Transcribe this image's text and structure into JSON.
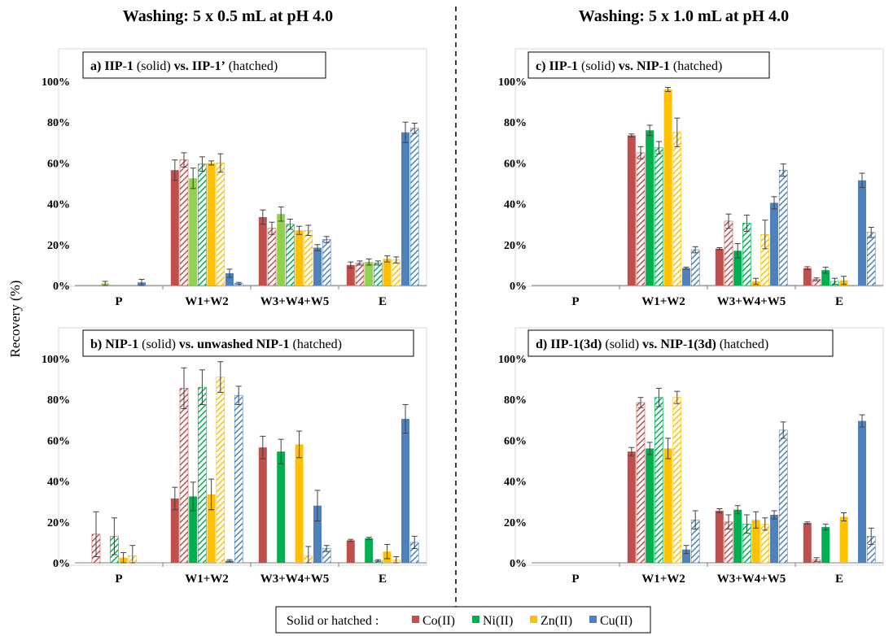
{
  "header": {
    "left_title": "Washing: 5 x 0.5 mL at pH 4.0",
    "right_title": "Washing: 5 x 1.0 mL at pH 4.0"
  },
  "y_axis_label": "Recovery (%)",
  "legend": {
    "prefix": "Solid or hatched :",
    "items": [
      {
        "label": "Co(II)",
        "color": "#c0504d"
      },
      {
        "label": "Ni(II)",
        "color": "#00b050"
      },
      {
        "label": "Zn(II)",
        "color": "#ffc000"
      },
      {
        "label": "Cu(II)",
        "color": "#4f81bd"
      }
    ]
  },
  "colors": {
    "Co": "#c0504d",
    "Ni": "#00b050",
    "Ni_light": "#92d050",
    "Zn": "#ffc000",
    "Cu": "#4f81bd"
  },
  "chart_data": [
    {
      "panel": "a",
      "type": "bar",
      "title": [
        {
          "t": "a) ",
          "b": true
        },
        {
          "t": "IIP",
          "b": true
        },
        {
          "t": "-",
          "b": false
        },
        {
          "t": "1",
          "b": true
        },
        {
          "t": " (solid) ",
          "b": false
        },
        {
          "t": "vs. IIP-1’",
          "b": true
        },
        {
          "t": " (hatched)",
          "b": false
        }
      ],
      "categories": [
        "P",
        "W1+W2",
        "W3+W4+W5",
        "E"
      ],
      "yticks": [
        "0%",
        "20%",
        "40%",
        "60%",
        "80%",
        "100%"
      ],
      "ylim": [
        0,
        110
      ],
      "grid": false,
      "bars": [
        {
          "ion": "Co",
          "hatched": false,
          "values": [
            0,
            56.5,
            33.5,
            10
          ],
          "err": [
            0,
            5,
            3.5,
            1.5
          ]
        },
        {
          "ion": "Co",
          "hatched": true,
          "values": [
            0,
            61.5,
            28,
            11
          ],
          "err": [
            0,
            3.5,
            3,
            1
          ]
        },
        {
          "ion": "Ni",
          "hatched": false,
          "light": true,
          "values": [
            1,
            52.5,
            35,
            11.5
          ],
          "err": [
            1,
            5,
            3.5,
            1.5
          ]
        },
        {
          "ion": "Ni",
          "hatched": true,
          "values": [
            0,
            59.5,
            30,
            11
          ],
          "err": [
            0,
            3.5,
            2.5,
            1
          ]
        },
        {
          "ion": "Zn",
          "hatched": false,
          "values": [
            0,
            60,
            27,
            13
          ],
          "err": [
            0,
            1,
            2,
            1.5
          ]
        },
        {
          "ion": "Zn",
          "hatched": true,
          "values": [
            0,
            60,
            27,
            12.5
          ],
          "err": [
            0,
            4.5,
            2.5,
            1.5
          ]
        },
        {
          "ion": "Cu",
          "hatched": false,
          "values": [
            1.5,
            6,
            18.5,
            75
          ],
          "err": [
            1.5,
            2,
            1.5,
            5
          ]
        },
        {
          "ion": "Cu",
          "hatched": true,
          "values": [
            0,
            1,
            22.5,
            77
          ],
          "err": [
            0,
            0.5,
            1.5,
            2.5
          ]
        }
      ]
    },
    {
      "panel": "b",
      "type": "bar",
      "title": [
        {
          "t": "b) ",
          "b": true
        },
        {
          "t": "NIP",
          "b": true
        },
        {
          "t": "-",
          "b": false
        },
        {
          "t": "1",
          "b": true
        },
        {
          "t": " (solid) ",
          "b": false
        },
        {
          "t": "vs. unwashed NIP",
          "b": true
        },
        {
          "t": "-",
          "b": false
        },
        {
          "t": "1",
          "b": true
        },
        {
          "t": " (hatched)",
          "b": false
        }
      ],
      "categories": [
        "P",
        "W1+W2",
        "W3+W4+W5",
        "E"
      ],
      "yticks": [
        "0%",
        "20%",
        "40%",
        "60%",
        "80%",
        "100%"
      ],
      "ylim": [
        0,
        110
      ],
      "grid": false,
      "bars": [
        {
          "ion": "Co",
          "hatched": false,
          "values": [
            0,
            31.5,
            56.5,
            11
          ],
          "err": [
            0,
            5.5,
            5.5,
            0.5
          ]
        },
        {
          "ion": "Co",
          "hatched": true,
          "values": [
            14,
            85.5,
            0,
            0
          ],
          "err": [
            11,
            10,
            0,
            0
          ]
        },
        {
          "ion": "Ni",
          "hatched": false,
          "values": [
            0,
            32.5,
            54.5,
            12
          ],
          "err": [
            0,
            7,
            6,
            0.5
          ]
        },
        {
          "ion": "Ni",
          "hatched": true,
          "values": [
            13,
            86,
            0,
            1
          ],
          "err": [
            9,
            8.5,
            0,
            0.5
          ]
        },
        {
          "ion": "Zn",
          "hatched": false,
          "values": [
            2.5,
            33.5,
            58,
            5.5
          ],
          "err": [
            2.5,
            7.5,
            6.5,
            3.5
          ]
        },
        {
          "ion": "Zn",
          "hatched": true,
          "values": [
            3.5,
            91,
            3.5,
            1.5
          ],
          "err": [
            5,
            7.5,
            4.5,
            1.5
          ]
        },
        {
          "ion": "Cu",
          "hatched": false,
          "values": [
            0,
            1,
            28,
            70.5
          ],
          "err": [
            0,
            0.5,
            7.5,
            7
          ]
        },
        {
          "ion": "Cu",
          "hatched": true,
          "values": [
            0,
            82,
            7,
            10
          ],
          "err": [
            0,
            4.5,
            1.5,
            3
          ]
        }
      ]
    },
    {
      "panel": "c",
      "type": "bar",
      "title": [
        {
          "t": "c) ",
          "b": true
        },
        {
          "t": "IIP",
          "b": true
        },
        {
          "t": "-",
          "b": false
        },
        {
          "t": "1",
          "b": true
        },
        {
          "t": " (solid) ",
          "b": false
        },
        {
          "t": "vs. NIP",
          "b": true
        },
        {
          "t": "-",
          "b": false
        },
        {
          "t": "1",
          "b": true
        },
        {
          "t": " (hatched)",
          "b": false
        }
      ],
      "categories": [
        "P",
        "W1+W2",
        "W3+W4+W5",
        "E"
      ],
      "yticks": [
        "0%",
        "20%",
        "40%",
        "60%",
        "80%",
        "100%"
      ],
      "ylim": [
        0,
        110
      ],
      "grid": false,
      "bars": [
        {
          "ion": "Co",
          "hatched": false,
          "values": [
            0,
            73.5,
            18,
            8.5
          ],
          "err": [
            0,
            0.7,
            0.5,
            0.7
          ]
        },
        {
          "ion": "Co",
          "hatched": true,
          "values": [
            0,
            65,
            31.5,
            3
          ],
          "err": [
            0,
            3,
            3.5,
            0.7
          ]
        },
        {
          "ion": "Ni",
          "hatched": false,
          "values": [
            0,
            76,
            17,
            7.5
          ],
          "err": [
            0,
            2.5,
            3.5,
            1.5
          ]
        },
        {
          "ion": "Ni",
          "hatched": true,
          "values": [
            0,
            67.5,
            30.5,
            2
          ],
          "err": [
            0,
            3,
            4,
            1.5
          ]
        },
        {
          "ion": "Zn",
          "hatched": false,
          "values": [
            0,
            96,
            2,
            2.5
          ],
          "err": [
            0,
            1,
            1.5,
            2
          ]
        },
        {
          "ion": "Zn",
          "hatched": true,
          "values": [
            0,
            75,
            25,
            0
          ],
          "err": [
            0,
            7,
            7,
            0
          ]
        },
        {
          "ion": "Cu",
          "hatched": false,
          "values": [
            0,
            8.5,
            40.5,
            51.5
          ],
          "err": [
            0,
            0.5,
            3,
            3.5
          ]
        },
        {
          "ion": "Cu",
          "hatched": true,
          "values": [
            0,
            17.5,
            56.5,
            26
          ],
          "err": [
            0,
            1.5,
            3,
            2.5
          ]
        }
      ]
    },
    {
      "panel": "d",
      "type": "bar",
      "title": [
        {
          "t": "d) ",
          "b": true
        },
        {
          "t": "IIP",
          "b": true
        },
        {
          "t": "-",
          "b": false
        },
        {
          "t": "1(3d)",
          "b": true
        },
        {
          "t": " (solid) ",
          "b": false
        },
        {
          "t": "vs. NIP",
          "b": true
        },
        {
          "t": "-",
          "b": false
        },
        {
          "t": "1(3d)",
          "b": true
        },
        {
          "t": " (hatched)",
          "b": false
        }
      ],
      "categories": [
        "P",
        "W1+W2",
        "W3+W4+W5",
        "E"
      ],
      "yticks": [
        "0%",
        "20%",
        "40%",
        "60%",
        "80%",
        "100%"
      ],
      "ylim": [
        0,
        110
      ],
      "grid": false,
      "bars": [
        {
          "ion": "Co",
          "hatched": false,
          "values": [
            0,
            54.5,
            25.5,
            19.5
          ],
          "err": [
            0,
            2,
            1,
            0.5
          ]
        },
        {
          "ion": "Co",
          "hatched": true,
          "values": [
            0,
            78.5,
            20,
            1.5
          ],
          "err": [
            0,
            2.5,
            3.5,
            1
          ]
        },
        {
          "ion": "Ni",
          "hatched": false,
          "values": [
            0,
            56,
            26,
            17.5
          ],
          "err": [
            0,
            3,
            2,
            1.5
          ]
        },
        {
          "ion": "Ni",
          "hatched": true,
          "values": [
            0,
            81,
            19,
            0
          ],
          "err": [
            0,
            4.5,
            4.5,
            0
          ]
        },
        {
          "ion": "Zn",
          "hatched": false,
          "values": [
            0,
            56,
            21,
            22.5
          ],
          "err": [
            0,
            5,
            4,
            2
          ]
        },
        {
          "ion": "Zn",
          "hatched": true,
          "values": [
            0,
            81,
            19,
            0
          ],
          "err": [
            0,
            3,
            3,
            0
          ]
        },
        {
          "ion": "Cu",
          "hatched": false,
          "values": [
            0,
            6.5,
            23.5,
            69.5
          ],
          "err": [
            0,
            2,
            2,
            3
          ]
        },
        {
          "ion": "Cu",
          "hatched": true,
          "values": [
            0,
            21,
            65,
            13
          ],
          "err": [
            0,
            4.5,
            4,
            4
          ]
        }
      ]
    }
  ]
}
